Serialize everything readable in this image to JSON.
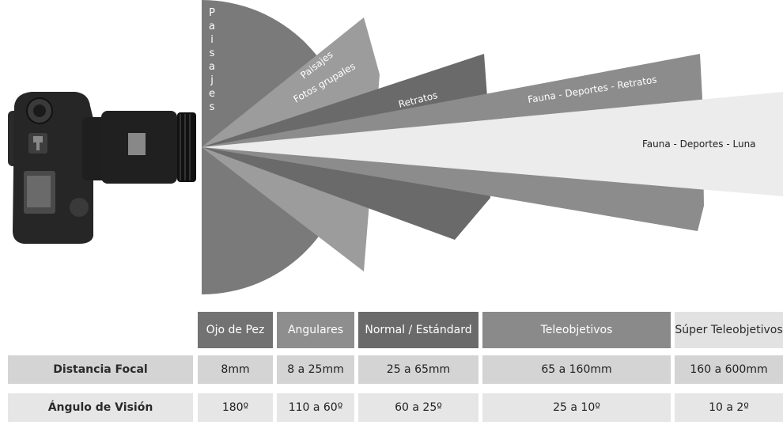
{
  "fan_labels": {
    "paisajes_vertical": "Paisajes",
    "paisajes": "Paisajes",
    "fotos_grupales": "Fotos grupales",
    "retratos": "Retratos",
    "fauna_deportes_retratos": "Fauna - Deportes - Retratos",
    "fauna_deportes_luna": "Fauna - Deportes - Luna"
  },
  "fan_colors": [
    "#7a7a7a",
    "#9c9c9c",
    "#6a6a6a",
    "#8c8c8c",
    "#ececec"
  ],
  "table": {
    "headers": [
      "Ojo de Pez",
      "Angulares",
      "Normal / Estándard",
      "Teleobjetivos",
      "Súper Teleobjetivos"
    ],
    "header_colors": [
      "#727272",
      "#8e8e8e",
      "#6a6a6a",
      "#8a8a8a",
      "#e2e2e2"
    ],
    "rows": [
      {
        "label": "Distancia Focal",
        "values": [
          "8mm",
          "8 a 25mm",
          "25 a 65mm",
          "65 a 160mm",
          "160 a 600mm"
        ]
      },
      {
        "label": "Ángulo de Visión",
        "values": [
          "180º",
          "110 a 60º",
          "60 a 25º",
          "25 a 10º",
          "10 a 2º"
        ]
      }
    ]
  }
}
